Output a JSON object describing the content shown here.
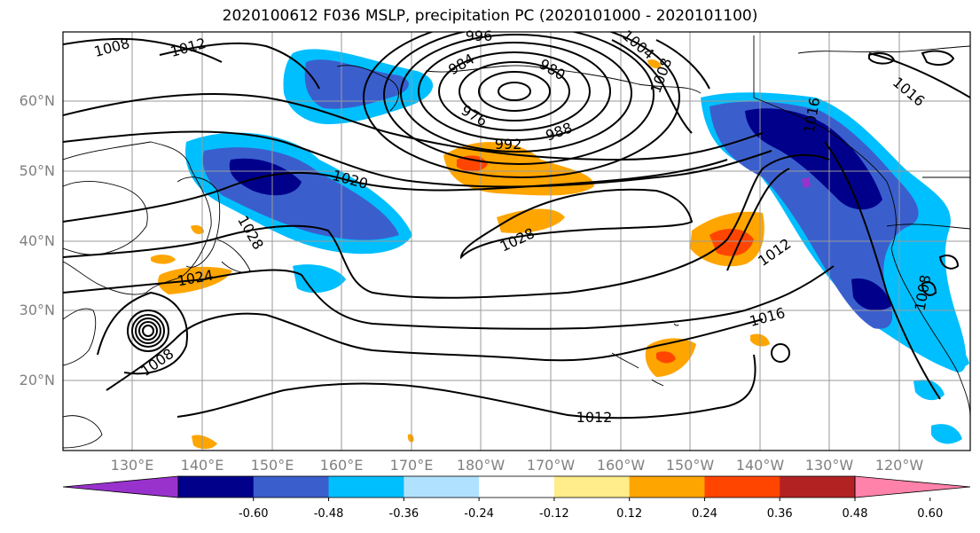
{
  "title": "2020100612 F036 MSLP, precipitation PC (2020101000 - 2020101100)",
  "lat_labels": [
    "60°N",
    "50°N",
    "40°N",
    "30°N",
    "20°N"
  ],
  "lon_labels": [
    "130°E",
    "140°E",
    "150°E",
    "160°E",
    "170°E",
    "180°W",
    "170°W",
    "160°W",
    "150°W",
    "140°W",
    "130°W",
    "120°W"
  ],
  "isobar_labels": [
    "1008",
    "1012",
    "996",
    "1004",
    "984",
    "980",
    "1008",
    "1016",
    "976",
    "988",
    "992",
    "1020",
    "1016",
    "1028",
    "1028",
    "1012",
    "1024",
    "1016",
    "1008",
    "1012",
    "1008"
  ],
  "colorbar": {
    "colors": [
      "#9932cc",
      "#00008b",
      "#3a5fcd",
      "#00bfff",
      "#b0e2ff",
      "#ffffff",
      "#ffec8b",
      "#ffa500",
      "#ff4500",
      "#b22222",
      "#ff82ab"
    ],
    "tick_labels": [
      "-0.60",
      "-0.48",
      "-0.36",
      "-0.24",
      "-0.12",
      "0.12",
      "0.24",
      "0.36",
      "0.48",
      "0.60"
    ]
  },
  "colors": {
    "isobar": "#000000",
    "coastline": "#000000",
    "grid": "#9a9a9a",
    "axis_label": "#808080"
  }
}
